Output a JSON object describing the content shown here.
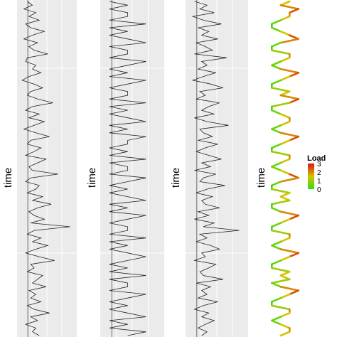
{
  "chart_data": [
    {
      "type": "line",
      "panel": 1,
      "ylabel": "time",
      "grid": true,
      "series_color": "#222222",
      "values": [
        0.6,
        0.9,
        0.4,
        1.1,
        0.7,
        1.3,
        0.5,
        0.8,
        1.6,
        0.9,
        0.4,
        1.2,
        0.7,
        1.0,
        1.8,
        0.6,
        0.5,
        1.1,
        0.9,
        1.4,
        0.7,
        0.3,
        1.0,
        1.5,
        0.8,
        0.6,
        1.2,
        2.1,
        0.9,
        0.5,
        1.3,
        0.7,
        1.6,
        1.0,
        0.4,
        1.1,
        1.9,
        0.8,
        0.6,
        1.4,
        1.0,
        0.5,
        1.7,
        1.2,
        0.7,
        0.9,
        2.4,
        0.8,
        0.5,
        1.3,
        1.1,
        0.6,
        1.5,
        0.9,
        2.0,
        1.2,
        0.7,
        1.0,
        1.6,
        0.8,
        3.1,
        1.0,
        0.6,
        1.4,
        0.9,
        1.8,
        1.1,
        0.5,
        1.3,
        2.2,
        0.8,
        1.0,
        0.6,
        1.5,
        1.2,
        0.9,
        1.7,
        0.7,
        1.1,
        0.8,
        1.4,
        0.6,
        1.0,
        1.9,
        0.8,
        1.2,
        0.5,
        1.1,
        0.9,
        1.3
      ],
      "xlim": [
        0,
        3.5
      ]
    },
    {
      "type": "line",
      "panel": 2,
      "ylabel": "time",
      "grid": true,
      "series_color": "#222222",
      "values": [
        0,
        1,
        0,
        1,
        1,
        0,
        2,
        0,
        1,
        0,
        1,
        2,
        0,
        1,
        1,
        0,
        2,
        1,
        0,
        1,
        0,
        2,
        1,
        0,
        1,
        1,
        0,
        2,
        0,
        1,
        0,
        1,
        2,
        0,
        1,
        0,
        2,
        1,
        1,
        0,
        1,
        0,
        2,
        0,
        1,
        1,
        0,
        2,
        1,
        0,
        1,
        0,
        1,
        2,
        0,
        1,
        0,
        2,
        1,
        0,
        1,
        1,
        0,
        2,
        0,
        1,
        0,
        1,
        2,
        1,
        0,
        1,
        0,
        2,
        0,
        1,
        1,
        0,
        2,
        1,
        0,
        1,
        0,
        1,
        2,
        0,
        1,
        0,
        2,
        1
      ],
      "xlim": [
        -0.5,
        3
      ]
    },
    {
      "type": "line",
      "panel": 3,
      "ylabel": "time",
      "grid": true,
      "series_color": "#222222",
      "values": [
        0.5,
        1.2,
        0.8,
        1.6,
        0.4,
        1.0,
        2.0,
        0.7,
        1.3,
        0.9,
        1.8,
        0.6,
        1.1,
        1.5,
        0.5,
        2.3,
        0.9,
        1.2,
        0.7,
        1.7,
        1.0,
        0.4,
        1.4,
        2.1,
        0.8,
        1.1,
        0.6,
        1.9,
        1.3,
        0.9,
        1.6,
        0.5,
        1.2,
        2.4,
        0.8,
        1.0,
        1.5,
        0.7,
        1.8,
        1.1,
        0.6,
        1.3,
        2.0,
        0.9,
        1.4,
        0.5,
        1.7,
        1.0,
        0.8,
        2.2,
        1.2,
        0.6,
        1.5,
        0.9,
        1.1,
        1.9,
        0.7,
        1.3,
        0.5,
        1.6,
        1.0,
        3.0,
        0.8,
        1.2,
        0.6,
        1.4,
        1.9,
        0.9,
        1.1,
        0.5,
        1.7,
        1.3,
        0.8,
        1.0,
        2.1,
        0.6,
        1.4,
        0.9,
        1.2,
        0.7,
        1.8,
        1.0,
        0.5,
        1.3,
        0.9,
        1.6,
        1.1,
        0.7,
        1.2,
        0.9
      ],
      "xlim": [
        0,
        3.5
      ]
    },
    {
      "type": "line",
      "panel": 4,
      "ylabel": "time",
      "grid": false,
      "color_by": "Load",
      "values": [
        2,
        1,
        3,
        2,
        2,
        1,
        0,
        0,
        1,
        2,
        3,
        1,
        0,
        0,
        2,
        2,
        1,
        0,
        1,
        3,
        2,
        1,
        0,
        0,
        2,
        1,
        3,
        2,
        0,
        0,
        1,
        2,
        2,
        1,
        0,
        1,
        3,
        2,
        1,
        0,
        0,
        2,
        2,
        1,
        0,
        1,
        2,
        3,
        1,
        0,
        0,
        2,
        1,
        2,
        0,
        0,
        1,
        3,
        2,
        1,
        0,
        0,
        2,
        2,
        1,
        0,
        1,
        3,
        2,
        1,
        0,
        0,
        2,
        1,
        2,
        0,
        1,
        3,
        2,
        1,
        0,
        0,
        2,
        2,
        1,
        0,
        1,
        2,
        2,
        1
      ],
      "xlim": [
        -0.5,
        3.5
      ],
      "legend": {
        "title": "Load",
        "ticks": [
          "3",
          "2",
          "1",
          "0"
        ],
        "range": [
          0,
          3
        ],
        "colors": [
          "#33dd11",
          "#d4c400",
          "#dd1111"
        ],
        "placement": "right"
      }
    }
  ]
}
